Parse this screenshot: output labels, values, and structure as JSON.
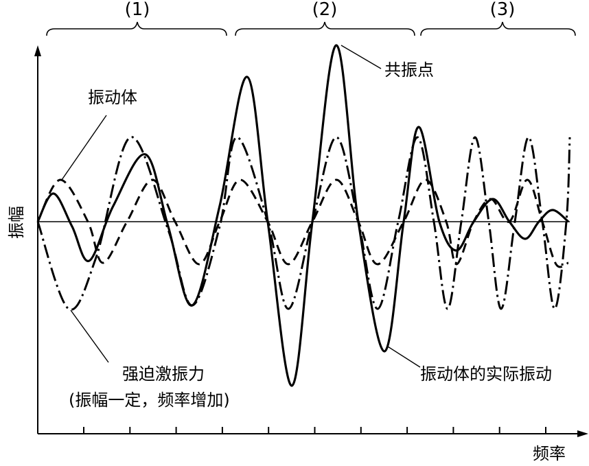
{
  "regions": [
    {
      "label": "(1)"
    },
    {
      "label": "(2)"
    },
    {
      "label": "(3)"
    }
  ],
  "labels": {
    "vibrating_body": "振动体",
    "resonance_point": "共振点",
    "forcing_force": "强迫激振力",
    "forcing_note": "(振幅一定，频率增加)",
    "actual_vibration": "振动体的实际振动",
    "x_axis": "频率",
    "y_axis": "振幅"
  }
}
